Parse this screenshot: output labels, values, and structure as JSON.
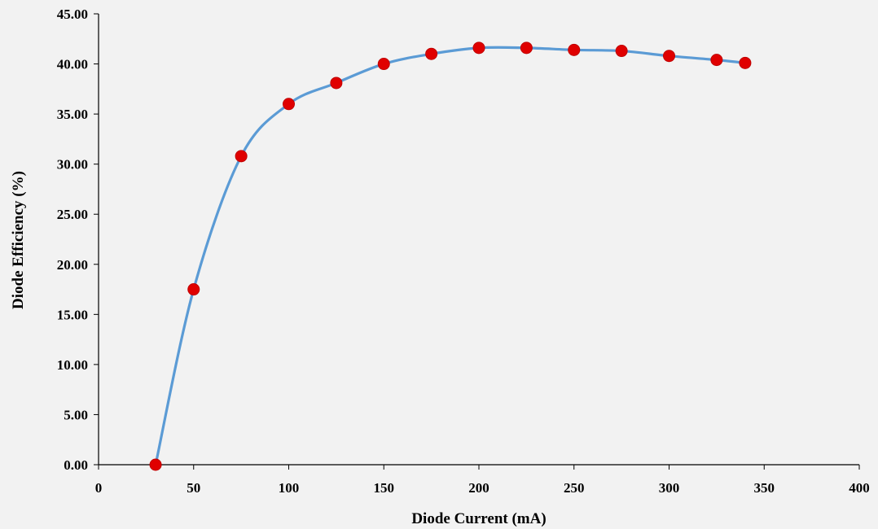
{
  "chart_data": {
    "type": "scatter",
    "title": "",
    "xlabel": "Diode Current (mA)",
    "ylabel": "Diode Efficiency (%)",
    "xlim": [
      0,
      400
    ],
    "ylim": [
      0,
      45
    ],
    "x_ticks": [
      "0",
      "50",
      "100",
      "150",
      "200",
      "250",
      "300",
      "350",
      "400"
    ],
    "y_ticks": [
      "0.00",
      "5.00",
      "10.00",
      "15.00",
      "20.00",
      "25.00",
      "30.00",
      "35.00",
      "40.00",
      "45.00"
    ],
    "grid": false,
    "legend": "none",
    "series": [
      {
        "marker_color": "#e00000",
        "marker_edge_color": "#c00000",
        "line_color": "#5b9bd5",
        "x": [
          30,
          50,
          75,
          100,
          125,
          150,
          175,
          200,
          225,
          250,
          275,
          300,
          325,
          340
        ],
        "y": [
          0.0,
          17.5,
          30.8,
          36.0,
          38.1,
          40.0,
          41.0,
          41.6,
          41.6,
          41.4,
          41.3,
          40.8,
          40.4,
          40.1
        ]
      }
    ]
  }
}
